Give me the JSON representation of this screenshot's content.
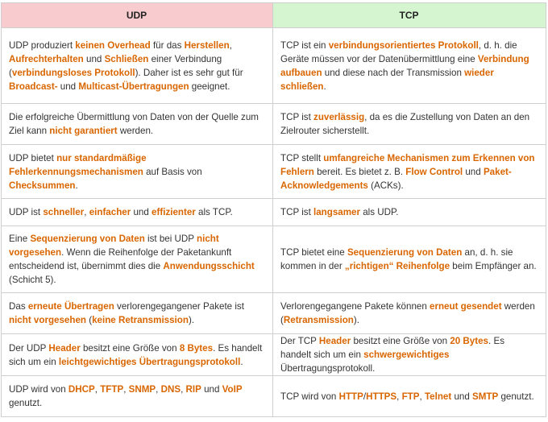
{
  "table": {
    "headers": [
      "UDP",
      "TCP"
    ],
    "rows": [
      {
        "udp": [
          {
            "t": "UDP produziert "
          },
          {
            "t": "keinen Overhead",
            "h": true
          },
          {
            "t": " für das "
          },
          {
            "t": "Herstellen",
            "h": true
          },
          {
            "t": ", "
          },
          {
            "t": "Aufrechterhalten",
            "h": true
          },
          {
            "t": " und "
          },
          {
            "t": "Schließen",
            "h": true
          },
          {
            "t": " einer Verbindung ("
          },
          {
            "t": "verbindungsloses Protokoll",
            "h": true
          },
          {
            "t": "). Daher ist es sehr gut für "
          },
          {
            "t": "Broadcast-",
            "h": true
          },
          {
            "t": " und "
          },
          {
            "t": "Multicast-Übertragungen",
            "h": true
          },
          {
            "t": " geeignet."
          }
        ],
        "tcp": [
          {
            "t": "TCP ist ein "
          },
          {
            "t": "verbindungsorientiertes Protokoll",
            "h": true
          },
          {
            "t": ", d. h. die Geräte müssen vor der Datenübermittlung eine "
          },
          {
            "t": "Verbindung aufbauen",
            "h": true
          },
          {
            "t": " und diese nach der Transmission "
          },
          {
            "t": "wieder schließen",
            "h": true
          },
          {
            "t": "."
          }
        ]
      },
      {
        "udp": [
          {
            "t": "Die erfolgreiche Übermittlung von Daten von der Quelle zum Ziel kann "
          },
          {
            "t": "nicht garantiert",
            "h": true
          },
          {
            "t": " werden."
          }
        ],
        "tcp": [
          {
            "t": "TCP ist "
          },
          {
            "t": "zuverlässig",
            "h": true
          },
          {
            "t": ", da es die Zustellung von Daten an den Zielrouter sicherstellt."
          }
        ]
      },
      {
        "udp": [
          {
            "t": "UDP bietet "
          },
          {
            "t": "nur standardmäßige Fehlerkennungsmechanismen",
            "h": true
          },
          {
            "t": " auf Basis von "
          },
          {
            "t": "Checksummen",
            "h": true
          },
          {
            "t": "."
          }
        ],
        "tcp": [
          {
            "t": "TCP stellt "
          },
          {
            "t": "umfangreiche Mechanismen zum Erkennen von Fehlern",
            "h": true
          },
          {
            "t": " bereit. Es bietet z. B. "
          },
          {
            "t": "Flow Control",
            "h": true
          },
          {
            "t": " und "
          },
          {
            "t": "Paket-Acknowledgements",
            "h": true
          },
          {
            "t": " (ACKs)."
          }
        ]
      },
      {
        "udp": [
          {
            "t": "UDP ist "
          },
          {
            "t": "schneller",
            "h": true
          },
          {
            "t": ", "
          },
          {
            "t": "einfacher",
            "h": true
          },
          {
            "t": " und "
          },
          {
            "t": "effizienter",
            "h": true
          },
          {
            "t": " als TCP."
          }
        ],
        "tcp": [
          {
            "t": "TCP ist "
          },
          {
            "t": "langsamer",
            "h": true
          },
          {
            "t": " als UDP."
          }
        ]
      },
      {
        "udp": [
          {
            "t": "Eine "
          },
          {
            "t": "Sequenzierung von Daten",
            "h": true
          },
          {
            "t": " ist bei UDP "
          },
          {
            "t": "nicht vorgesehen",
            "h": true
          },
          {
            "t": ". Wenn die Reihenfolge der Paketankunft entscheidend ist, übernimmt dies die "
          },
          {
            "t": "Anwendungsschicht",
            "h": true
          },
          {
            "t": " (Schicht 5)."
          }
        ],
        "tcp": [
          {
            "t": "TCP bietet eine "
          },
          {
            "t": "Sequenzierung von Daten",
            "h": true
          },
          {
            "t": " an, d. h. sie kommen in der "
          },
          {
            "t": "„richtigen“ Reihenfolge",
            "h": true
          },
          {
            "t": " beim Empfänger an."
          }
        ]
      },
      {
        "udp": [
          {
            "t": "Das "
          },
          {
            "t": "erneute Übertragen",
            "h": true
          },
          {
            "t": " verlorengegangener Pakete ist "
          },
          {
            "t": "nicht vorgesehen",
            "h": true
          },
          {
            "t": " ("
          },
          {
            "t": "keine Retransmission",
            "h": true
          },
          {
            "t": ")."
          }
        ],
        "tcp": [
          {
            "t": "Verlorengegangene Pakete können "
          },
          {
            "t": "erneut gesendet",
            "h": true
          },
          {
            "t": " werden ("
          },
          {
            "t": "Retransmission",
            "h": true
          },
          {
            "t": ")."
          }
        ]
      },
      {
        "udp": [
          {
            "t": "Der UDP "
          },
          {
            "t": "Header",
            "h": true
          },
          {
            "t": " besitzt eine Größe von "
          },
          {
            "t": "8 Bytes",
            "h": true
          },
          {
            "t": ". Es handelt sich um ein "
          },
          {
            "t": "leichtgewichtiges Übertragungsprotokoll",
            "h": true
          },
          {
            "t": "."
          }
        ],
        "tcp": [
          {
            "t": "Der TCP "
          },
          {
            "t": "Header",
            "h": true
          },
          {
            "t": " besitzt eine Größe von "
          },
          {
            "t": "20 Bytes",
            "h": true
          },
          {
            "t": ". Es handelt sich um ein "
          },
          {
            "t": "schwergewichtiges",
            "h": true
          },
          {
            "t": " Übertragungsprotokoll."
          }
        ]
      },
      {
        "udp": [
          {
            "t": "UDP wird von "
          },
          {
            "t": "DHCP",
            "h": true
          },
          {
            "t": ", "
          },
          {
            "t": "TFTP",
            "h": true
          },
          {
            "t": ", "
          },
          {
            "t": "SNMP",
            "h": true
          },
          {
            "t": ", "
          },
          {
            "t": "DNS",
            "h": true
          },
          {
            "t": ", "
          },
          {
            "t": "RIP",
            "h": true
          },
          {
            "t": " und "
          },
          {
            "t": "VoIP",
            "h": true
          },
          {
            "t": " genutzt."
          }
        ],
        "tcp": [
          {
            "t": "TCP wird von "
          },
          {
            "t": "HTTP",
            "h": true
          },
          {
            "t": "/"
          },
          {
            "t": "HTTPS",
            "h": true
          },
          {
            "t": ", "
          },
          {
            "t": "FTP",
            "h": true
          },
          {
            "t": ", "
          },
          {
            "t": "Telnet",
            "h": true
          },
          {
            "t": " und "
          },
          {
            "t": "SMTP",
            "h": true
          },
          {
            "t": " genutzt."
          }
        ]
      }
    ]
  }
}
